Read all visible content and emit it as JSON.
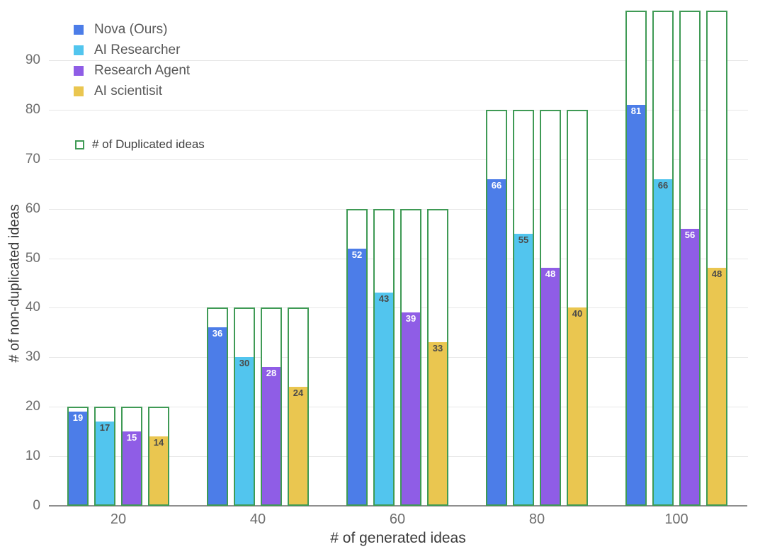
{
  "chart_data": {
    "type": "bar",
    "title": "",
    "xlabel": "# of generated ideas",
    "ylabel": "# of non-duplicated ideas",
    "categories": [
      "20",
      "40",
      "60",
      "80",
      "100"
    ],
    "series": [
      {
        "name": "Nova (Ours)",
        "color": "#4C7DE8",
        "label_color": "#FFFFFF",
        "values": [
          19,
          36,
          52,
          66,
          81
        ]
      },
      {
        "name": "AI Researcher",
        "color": "#52C5EE",
        "label_color": "#4A4A4A",
        "values": [
          17,
          30,
          43,
          55,
          66
        ]
      },
      {
        "name": "Research Agent",
        "color": "#8F5DE6",
        "label_color": "#FFFFFF",
        "values": [
          15,
          28,
          39,
          48,
          56
        ]
      },
      {
        "name": "AI scientisit",
        "color": "#EAC650",
        "label_color": "#4A4A4A",
        "values": [
          14,
          24,
          33,
          40,
          48
        ]
      }
    ],
    "outline_series": {
      "name": "# of Duplicated ideas",
      "color": "#3F9A55",
      "totals": [
        20,
        40,
        60,
        80,
        100
      ]
    },
    "yticks": [
      0,
      10,
      20,
      30,
      40,
      50,
      60,
      70,
      80,
      90
    ],
    "ylim": [
      0,
      102
    ],
    "grid": "horizontal",
    "legend_position": "top-left"
  }
}
